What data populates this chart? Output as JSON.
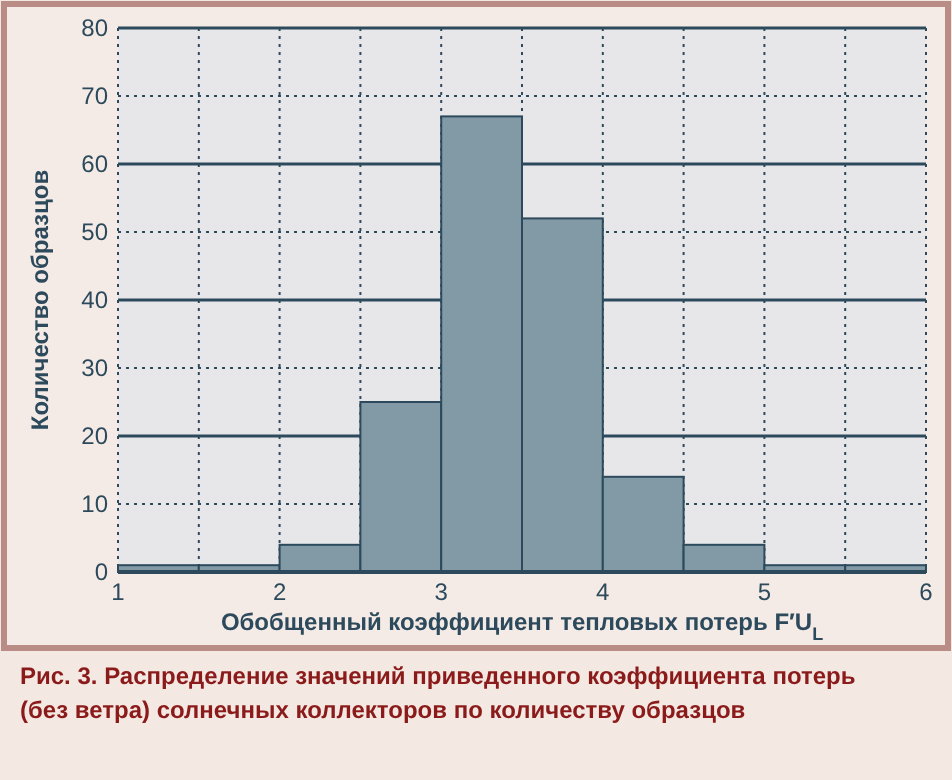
{
  "chart_data": {
    "type": "histogram",
    "xlabel": "Обобщенный коэффициент тепловых потерь F′U$_{L}$",
    "ylabel": "Количество образцов",
    "bins": [
      1,
      1.5,
      2,
      2.5,
      3,
      3.5,
      4,
      4.5,
      5,
      5.5,
      6
    ],
    "values": [
      1,
      1,
      4,
      25,
      67,
      52,
      14,
      4,
      1,
      1
    ],
    "color": "#8299a6",
    "xlim": [
      1,
      6
    ],
    "xticks": [
      1,
      {
        "value": 1.5,
        "label": null
      },
      2,
      {
        "value": 2.5,
        "label": null
      },
      3,
      {
        "value": 3.5,
        "label": null
      },
      4,
      {
        "value": 4.5,
        "label": null
      },
      5,
      {
        "value": 5.5,
        "label": null
      },
      6
    ],
    "ylim": [
      0,
      80
    ],
    "yticks": [
      0,
      10,
      20,
      30,
      40,
      50,
      60,
      70,
      80
    ],
    "grid": true,
    "annotations": [
      "Рис. 3. Распределение значений приведенного коэффициента потерь (без ветра) солнечных коллекторов по количеству образцов"
    ]
  }
}
